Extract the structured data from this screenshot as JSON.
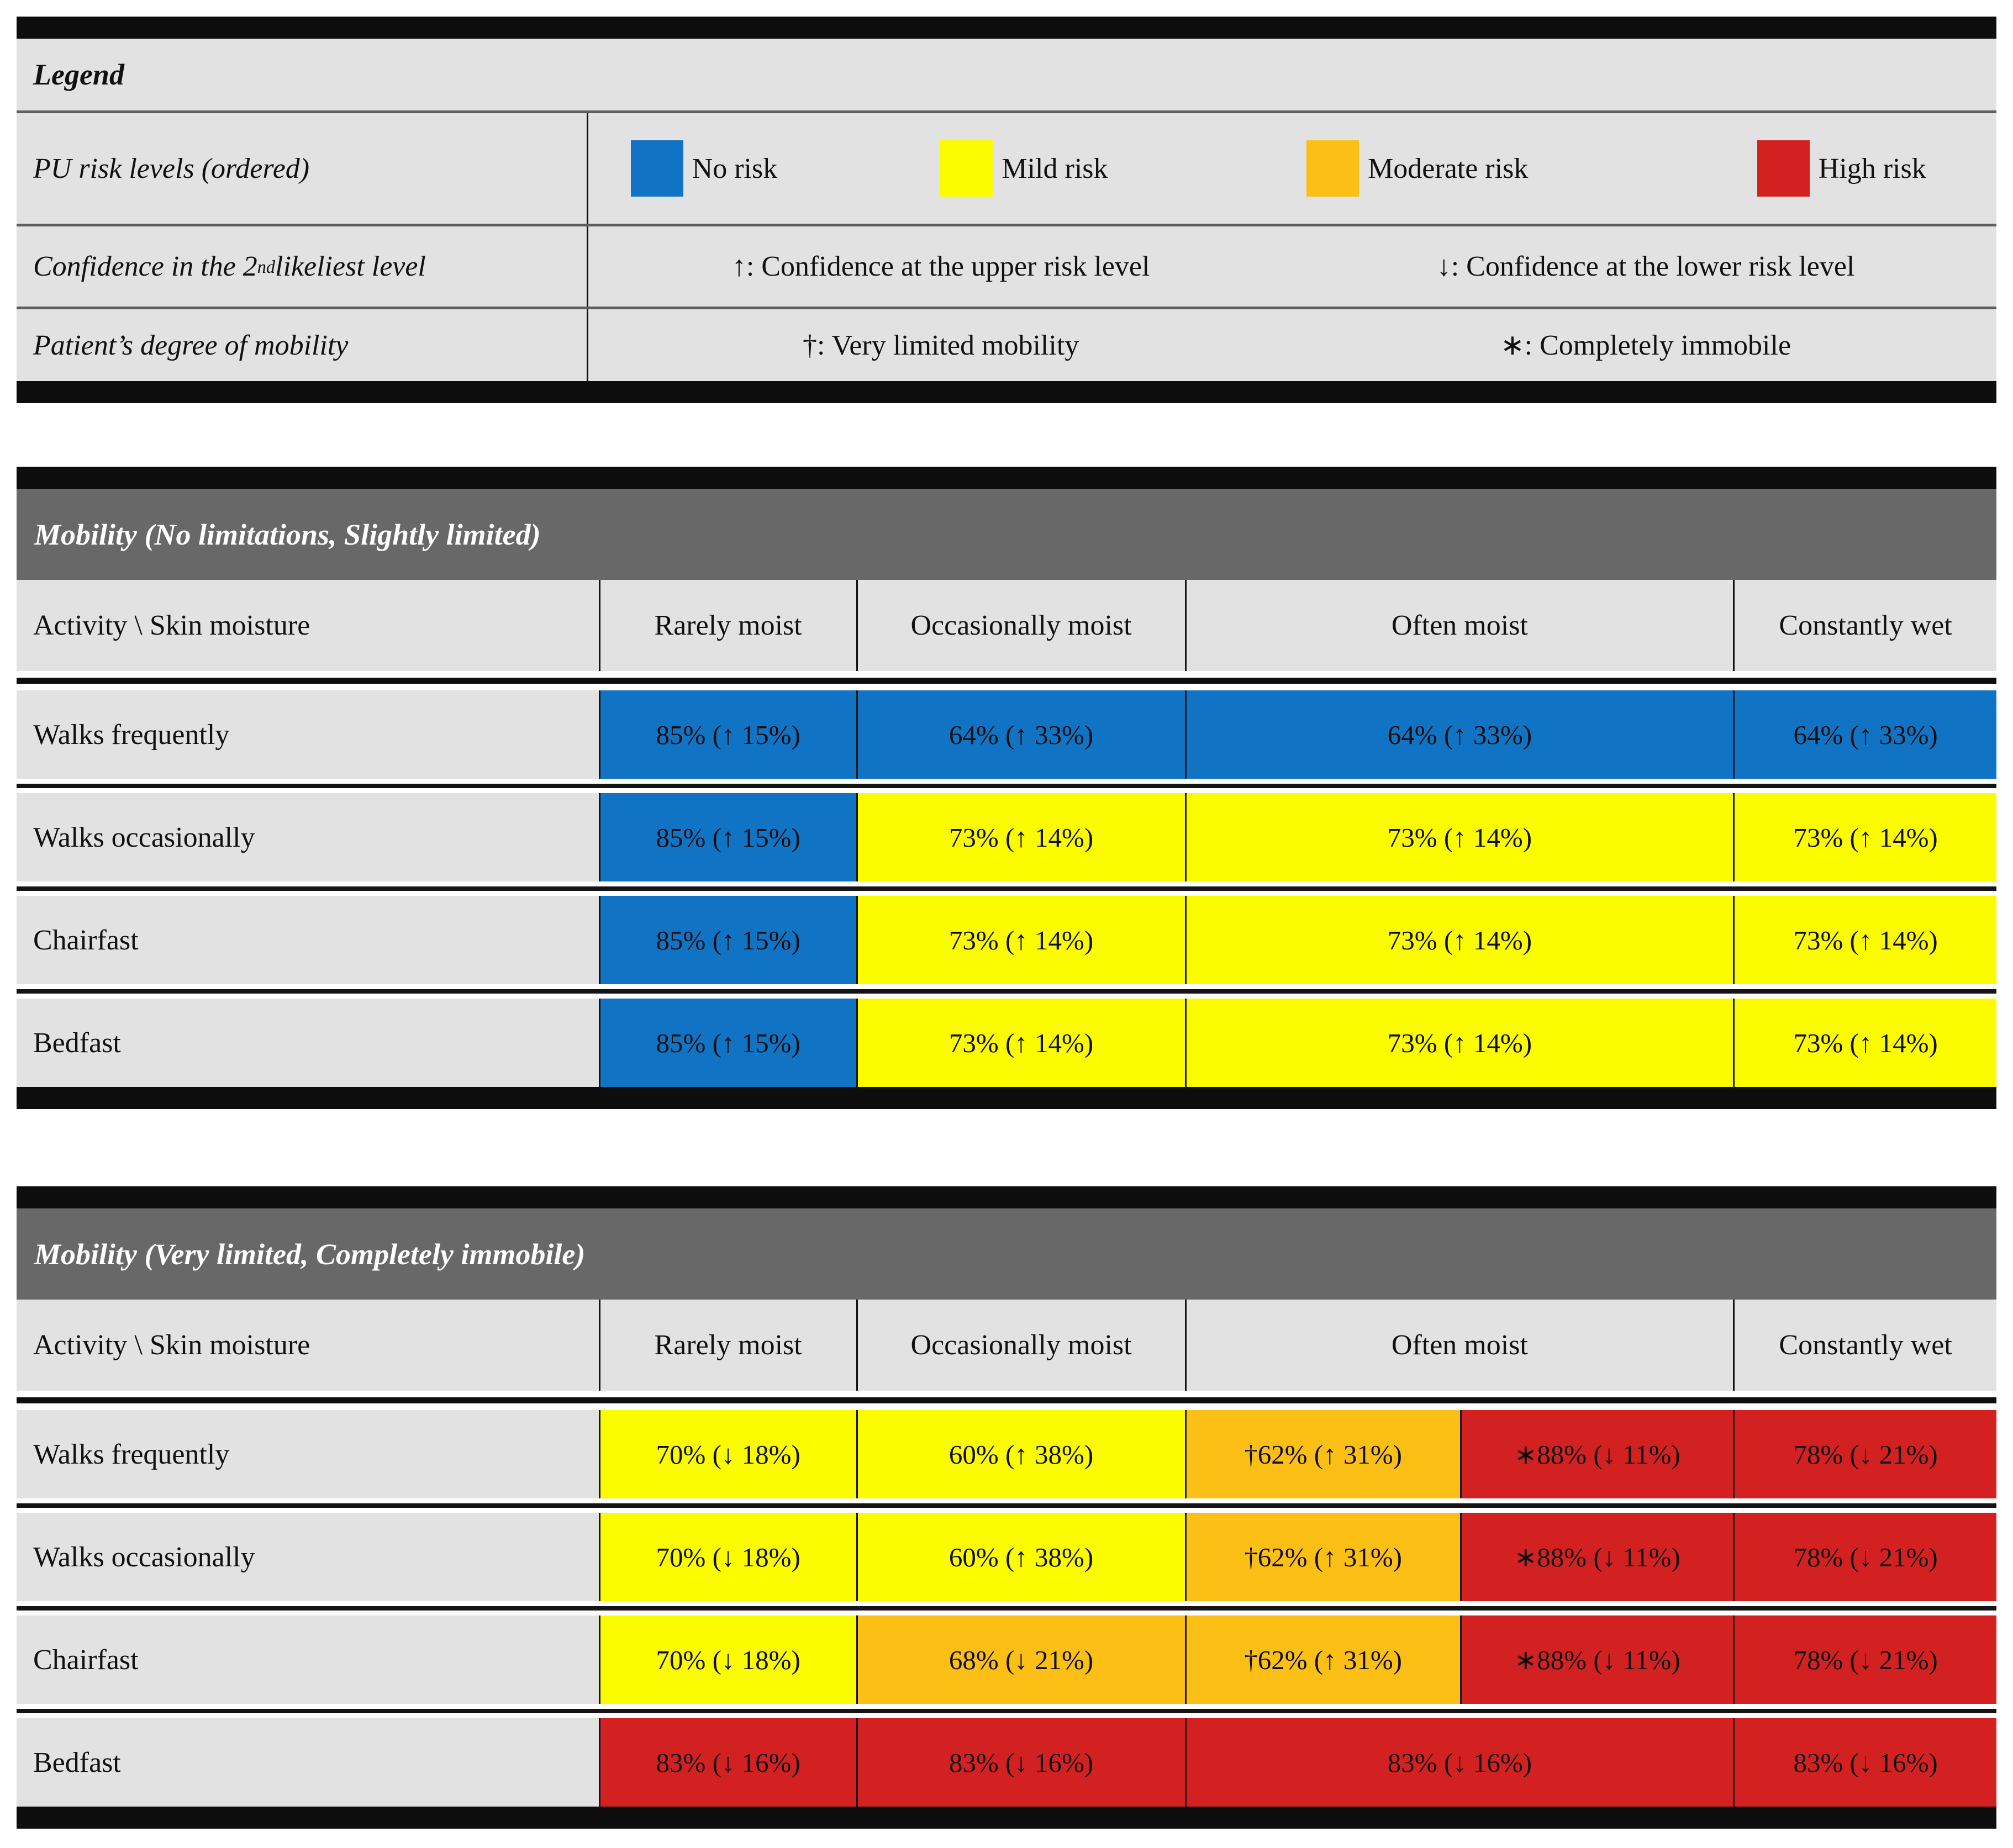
{
  "legend": {
    "title": "Legend",
    "risk_row": {
      "label": "PU risk levels (ordered)",
      "items": [
        {
          "label": "No risk",
          "color": "#1173c4"
        },
        {
          "label": "Mild risk",
          "color": "#fcfc00"
        },
        {
          "label": "Moderate risk",
          "color": "#fcbf16"
        },
        {
          "label": "High risk",
          "color": "#d32121"
        }
      ]
    },
    "confidence_row": {
      "label_prefix": "Confidence in the 2",
      "label_sup": "nd",
      "label_suffix": " likeliest level",
      "up": "↑: Confidence at the upper risk level",
      "down": "↓: Confidence at the lower risk level"
    },
    "mobility_row": {
      "label": "Patient’s degree of mobility",
      "dagger": "†: Very limited mobility",
      "asterisk": "∗: Completely immobile"
    }
  },
  "columns": [
    "Activity \\ Skin moisture",
    "Rarely moist",
    "Occasionally moist",
    "Often moist",
    "Constantly wet"
  ],
  "colors": {
    "no": "#1173c4",
    "mild": "#fcfc00",
    "moderate": "#fcbf16",
    "high": "#d32121"
  },
  "tables": [
    {
      "title": "Mobility (No limitations, Slightly limited)",
      "rows": [
        {
          "label": "Walks frequently",
          "cells": [
            {
              "text": "85% (↑ 15%)",
              "risk": "no"
            },
            {
              "text": "64% (↑ 33%)",
              "risk": "no"
            },
            {
              "text": "64% (↑ 33%)",
              "risk": "no",
              "span": 2
            },
            {
              "text": "64% (↑ 33%)",
              "risk": "no"
            }
          ]
        },
        {
          "label": "Walks occasionally",
          "cells": [
            {
              "text": "85% (↑ 15%)",
              "risk": "no"
            },
            {
              "text": "73% (↑ 14%)",
              "risk": "mild"
            },
            {
              "text": "73% (↑ 14%)",
              "risk": "mild",
              "span": 2
            },
            {
              "text": "73% (↑ 14%)",
              "risk": "mild"
            }
          ]
        },
        {
          "label": "Chairfast",
          "cells": [
            {
              "text": "85% (↑ 15%)",
              "risk": "no"
            },
            {
              "text": "73% (↑ 14%)",
              "risk": "mild"
            },
            {
              "text": "73% (↑ 14%)",
              "risk": "mild",
              "span": 2
            },
            {
              "text": "73% (↑ 14%)",
              "risk": "mild"
            }
          ]
        },
        {
          "label": "Bedfast",
          "cells": [
            {
              "text": "85% (↑ 15%)",
              "risk": "no"
            },
            {
              "text": "73% (↑ 14%)",
              "risk": "mild"
            },
            {
              "text": "73% (↑ 14%)",
              "risk": "mild",
              "span": 2
            },
            {
              "text": "73% (↑ 14%)",
              "risk": "mild"
            }
          ]
        }
      ]
    },
    {
      "title": "Mobility (Very limited, Completely immobile)",
      "rows": [
        {
          "label": "Walks frequently",
          "cells": [
            {
              "text": "70% (↓ 18%)",
              "risk": "mild"
            },
            {
              "text": "60% (↑ 38%)",
              "risk": "mild"
            },
            {
              "text": "†62% (↑ 31%)",
              "risk": "moderate"
            },
            {
              "text": "∗88% (↓ 11%)",
              "risk": "high"
            },
            {
              "text": "78% (↓ 21%)",
              "risk": "high"
            }
          ]
        },
        {
          "label": "Walks occasionally",
          "cells": [
            {
              "text": "70% (↓ 18%)",
              "risk": "mild"
            },
            {
              "text": "60% (↑ 38%)",
              "risk": "mild"
            },
            {
              "text": "†62% (↑ 31%)",
              "risk": "moderate"
            },
            {
              "text": "∗88% (↓ 11%)",
              "risk": "high"
            },
            {
              "text": "78% (↓ 21%)",
              "risk": "high"
            }
          ]
        },
        {
          "label": "Chairfast",
          "cells": [
            {
              "text": "70% (↓ 18%)",
              "risk": "mild"
            },
            {
              "text": "68% (↓ 21%)",
              "risk": "moderate"
            },
            {
              "text": "†62% (↑ 31%)",
              "risk": "moderate"
            },
            {
              "text": "∗88% (↓ 11%)",
              "risk": "high"
            },
            {
              "text": "78% (↓ 21%)",
              "risk": "high"
            }
          ]
        },
        {
          "label": "Bedfast",
          "cells": [
            {
              "text": "83% (↓ 16%)",
              "risk": "high"
            },
            {
              "text": "83% (↓ 16%)",
              "risk": "high"
            },
            {
              "text": "83% (↓ 16%)",
              "risk": "high",
              "span": 2
            },
            {
              "text": "83% (↓ 16%)",
              "risk": "high"
            }
          ]
        }
      ]
    }
  ]
}
